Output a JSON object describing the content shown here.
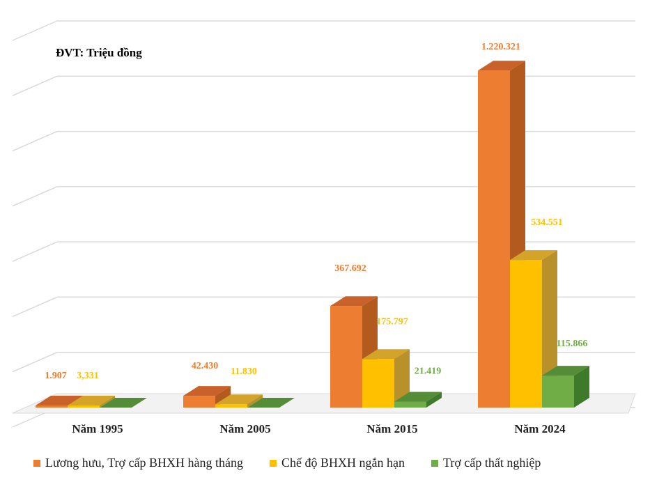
{
  "unit_label": "ĐVT: Triệu đồng",
  "chart_data": {
    "type": "bar",
    "style": "3d-clustered-column",
    "title": "",
    "unit": "ĐVT: Triệu đồng",
    "categories": [
      "Năm 1995",
      "Năm 2005",
      "Năm 2015",
      "Năm 2024"
    ],
    "series": [
      {
        "name": "Lương hưu, Trợ cấp BHXH hàng tháng",
        "color": "#ED7D31",
        "side": "#B35A1F",
        "top": "#C8612A",
        "values": [
          1907,
          42430,
          367692,
          1220321
        ],
        "labels": [
          "1.907",
          "42.430",
          "367.692",
          "1.220.321"
        ]
      },
      {
        "name": "Chế độ BHXH ngắn hạn",
        "color": "#FFC000",
        "side": "#B8912B",
        "top": "#D4A32A",
        "values": [
          3331,
          11830,
          175797,
          534551
        ],
        "labels": [
          "3,331",
          "11.830",
          "175.797",
          "534.551"
        ]
      },
      {
        "name": "Trợ cấp thất nghiệp",
        "color": "#70AD47",
        "side": "#3F7A2A",
        "top": "#558C38",
        "values": [
          null,
          null,
          21419,
          115866
        ],
        "labels": [
          "",
          "",
          "21.419",
          "115.866"
        ]
      }
    ],
    "ylim": [
      0,
      1400000
    ],
    "grid": true,
    "legend": "bottom"
  }
}
